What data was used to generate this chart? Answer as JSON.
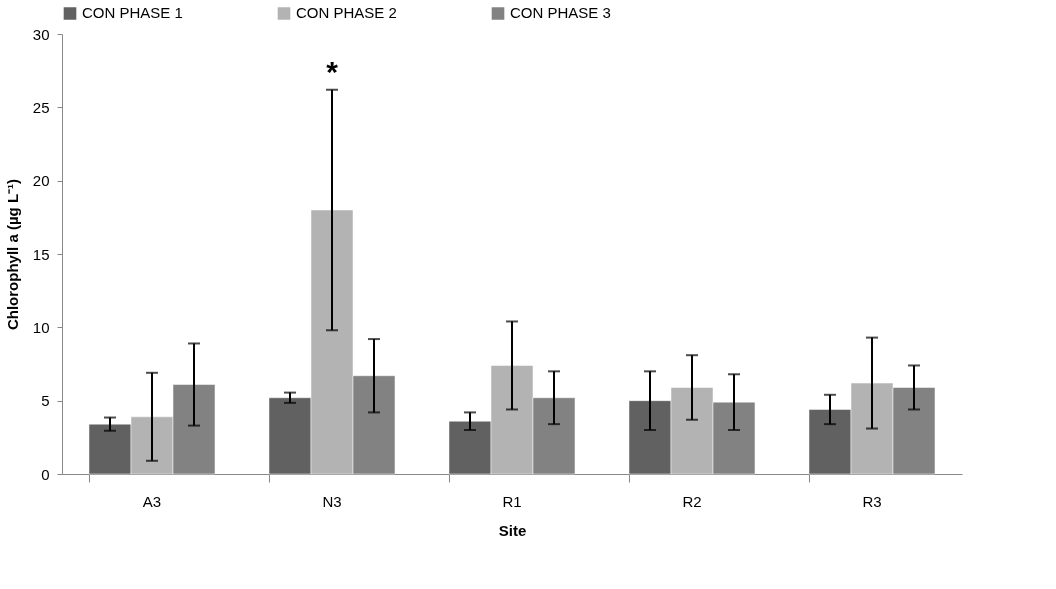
{
  "chart_data": {
    "type": "bar",
    "xlabel": "Site",
    "ylabel": "Chlorophyll a (µg L⁻¹)",
    "categories": [
      "A3",
      "N3",
      "R1",
      "R2",
      "R3"
    ],
    "series": [
      {
        "name": "CON PHASE 1",
        "color": "#616161",
        "values": [
          3.4,
          5.2,
          3.6,
          5.0,
          4.4
        ],
        "errors": [
          0.45,
          0.35,
          0.6,
          2.0,
          1.0
        ]
      },
      {
        "name": "CON PHASE 2",
        "color": "#b3b3b3",
        "values": [
          3.9,
          18.0,
          7.4,
          5.9,
          6.2
        ],
        "errors": [
          3.0,
          8.2,
          3.0,
          2.2,
          3.1
        ]
      },
      {
        "name": "CON PHASE 3",
        "color": "#828282",
        "values": [
          6.1,
          6.7,
          5.2,
          4.9,
          5.9
        ],
        "errors": [
          2.8,
          2.5,
          1.8,
          1.9,
          1.5
        ]
      }
    ],
    "ylim": [
      0,
      30
    ],
    "yticks": [
      0,
      5,
      10,
      15,
      20,
      25,
      30
    ],
    "grid": false,
    "legend": "top",
    "annotations": [
      "*"
    ]
  }
}
